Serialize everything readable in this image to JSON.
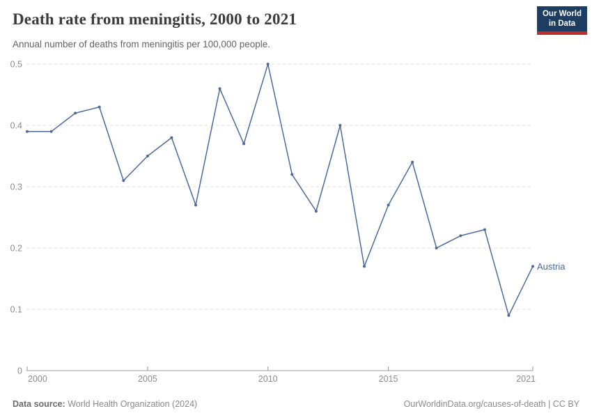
{
  "header": {
    "title": "Death rate from meningitis, 2000 to 2021",
    "subtitle": "Annual number of deaths from meningitis per 100,000 people.",
    "logo": {
      "line1": "Our World",
      "line2": "in Data"
    }
  },
  "chart_data": {
    "type": "line",
    "title": "Death rate from meningitis, 2000 to 2021",
    "subtitle": "Annual number of deaths from meningitis per 100,000 people.",
    "xlabel": "",
    "ylabel": "",
    "x": [
      2000,
      2001,
      2002,
      2003,
      2004,
      2005,
      2006,
      2007,
      2008,
      2009,
      2010,
      2011,
      2012,
      2013,
      2014,
      2015,
      2016,
      2017,
      2018,
      2019,
      2020,
      2021
    ],
    "series": [
      {
        "name": "Austria",
        "values": [
          0.39,
          0.39,
          0.42,
          0.43,
          0.31,
          0.35,
          0.38,
          0.27,
          0.46,
          0.37,
          0.5,
          0.32,
          0.26,
          0.4,
          0.17,
          0.27,
          0.34,
          0.2,
          0.22,
          0.23,
          0.09,
          0.17
        ]
      }
    ],
    "xlim": [
      2000,
      2021
    ],
    "ylim": [
      0,
      0.5
    ],
    "x_tick_labels": [
      "2000",
      "2005",
      "2010",
      "2015",
      "2021"
    ],
    "x_tick_values": [
      2000,
      2005,
      2010,
      2015,
      2021
    ],
    "y_tick_labels": [
      "0",
      "0.1",
      "0.2",
      "0.3",
      "0.4",
      "0.5"
    ],
    "y_tick_values": [
      0,
      0.1,
      0.2,
      0.3,
      0.4,
      0.5
    ],
    "grid": "horizontal-dashed",
    "legend_position": "end-of-line-label",
    "end_label": "Austria"
  },
  "footer": {
    "source_label": "Data source:",
    "source_text": " World Health Organization (2024)",
    "credit": "OurWorldinData.org/causes-of-death | CC BY"
  },
  "colors": {
    "line": "#4c6a9c",
    "grid": "#dddddd",
    "axis": "#999999",
    "tick_text": "#8c8c8c",
    "logo_bg": "#1d3d63",
    "logo_accent": "#b93029"
  }
}
